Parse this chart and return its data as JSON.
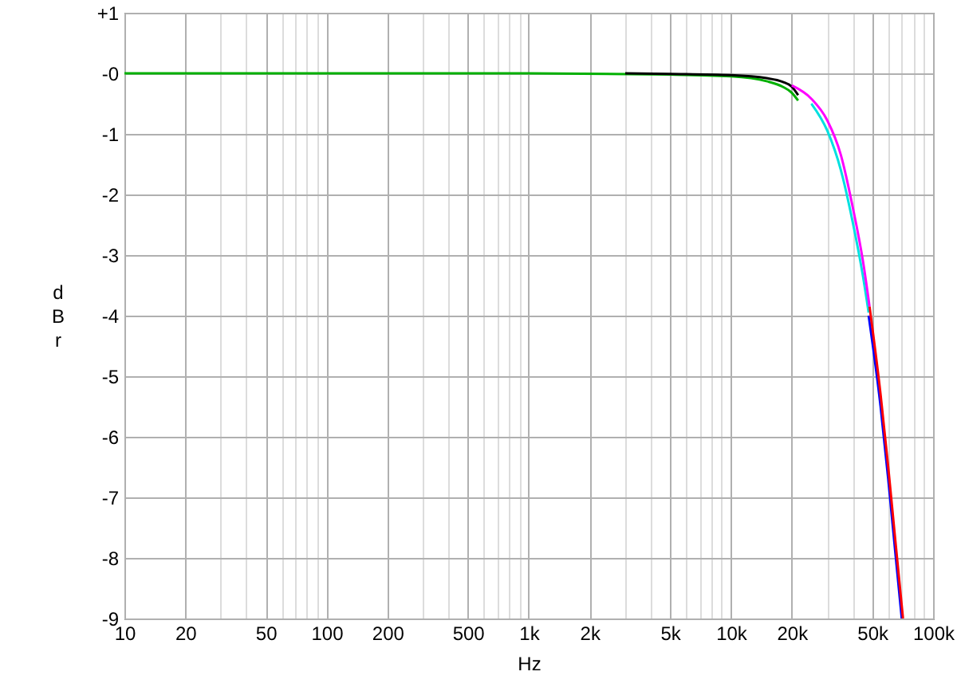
{
  "chart_data": {
    "type": "line",
    "xlabel": "Hz",
    "ylabel": "dBr",
    "log": "x",
    "grid": true,
    "line_style": "solid",
    "marker": "none",
    "xlim": [
      10,
      100000
    ],
    "ylim": [
      -9,
      1
    ],
    "xticks": [
      {
        "value": 10,
        "label": "10"
      },
      {
        "value": 20,
        "label": "20"
      },
      {
        "value": 30,
        "label": null
      },
      {
        "value": 40,
        "label": null
      },
      {
        "value": 50,
        "label": "50"
      },
      {
        "value": 60,
        "label": null
      },
      {
        "value": 70,
        "label": null
      },
      {
        "value": 80,
        "label": null
      },
      {
        "value": 90,
        "label": null
      },
      {
        "value": 100,
        "label": "100"
      },
      {
        "value": 200,
        "label": "200"
      },
      {
        "value": 300,
        "label": null
      },
      {
        "value": 400,
        "label": null
      },
      {
        "value": 500,
        "label": "500"
      },
      {
        "value": 600,
        "label": null
      },
      {
        "value": 700,
        "label": null
      },
      {
        "value": 800,
        "label": null
      },
      {
        "value": 900,
        "label": null
      },
      {
        "value": 1000,
        "label": "1k"
      },
      {
        "value": 2000,
        "label": "2k"
      },
      {
        "value": 3000,
        "label": null
      },
      {
        "value": 4000,
        "label": null
      },
      {
        "value": 5000,
        "label": "5k"
      },
      {
        "value": 6000,
        "label": null
      },
      {
        "value": 7000,
        "label": null
      },
      {
        "value": 8000,
        "label": null
      },
      {
        "value": 9000,
        "label": null
      },
      {
        "value": 10000,
        "label": "10k"
      },
      {
        "value": 20000,
        "label": "20k"
      },
      {
        "value": 30000,
        "label": null
      },
      {
        "value": 40000,
        "label": null
      },
      {
        "value": 50000,
        "label": "50k"
      },
      {
        "value": 60000,
        "label": null
      },
      {
        "value": 70000,
        "label": null
      },
      {
        "value": 80000,
        "label": null
      },
      {
        "value": 90000,
        "label": null
      },
      {
        "value": 100000,
        "label": "100k"
      }
    ],
    "yticks": [
      {
        "value": 1,
        "label": "+1"
      },
      {
        "value": 0,
        "label": "-0"
      },
      -1,
      -2,
      -3,
      -4,
      -5,
      -6,
      -7,
      -8,
      -9
    ],
    "series": [
      {
        "color": "#00b000",
        "x": [
          10,
          100,
          1000,
          5000,
          10000,
          15000,
          18000,
          20000,
          21500
        ],
        "values": [
          0,
          0,
          0,
          -0.02,
          -0.05,
          -0.13,
          -0.22,
          -0.32,
          -0.45
        ]
      },
      {
        "color": "#000000",
        "x": [
          3000,
          5000,
          10000,
          15000,
          18000,
          20000,
          21500
        ],
        "values": [
          0,
          -0.01,
          -0.03,
          -0.08,
          -0.14,
          -0.22,
          -0.36
        ]
      },
      {
        "color": "#00e0e0",
        "x": [
          25000,
          30000,
          35000,
          40000,
          45000,
          48000
        ],
        "values": [
          -0.5,
          -0.95,
          -1.6,
          -2.45,
          -3.35,
          -3.95
        ]
      },
      {
        "color": "#ff00ff",
        "x": [
          20000,
          25000,
          30000,
          35000,
          40000,
          45000,
          48500
        ],
        "values": [
          -0.2,
          -0.42,
          -0.78,
          -1.35,
          -2.2,
          -3.1,
          -3.85
        ]
      },
      {
        "color": "#0000ff",
        "x": [
          48000,
          55000,
          60000,
          65000,
          70000
        ],
        "values": [
          -4.0,
          -5.5,
          -6.7,
          -7.9,
          -9
        ]
      },
      {
        "color": "#ff0000",
        "x": [
          48500,
          55000,
          60000,
          65000,
          71000
        ],
        "values": [
          -3.85,
          -5.3,
          -6.5,
          -7.7,
          -9
        ]
      }
    ]
  }
}
